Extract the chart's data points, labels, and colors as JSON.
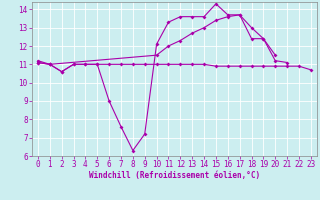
{
  "background_color": "#cceef0",
  "grid_color": "#ffffff",
  "line_color": "#aa00aa",
  "marker": "D",
  "marker_size": 2.0,
  "linewidth": 0.8,
  "xlabel": "Windchill (Refroidissement éolien,°C)",
  "xlabel_fontsize": 5.5,
  "tick_fontsize": 5.5,
  "xlim": [
    -0.5,
    23.5
  ],
  "ylim": [
    6,
    14.4
  ],
  "xticks": [
    0,
    1,
    2,
    3,
    4,
    5,
    6,
    7,
    8,
    9,
    10,
    11,
    12,
    13,
    14,
    15,
    16,
    17,
    18,
    19,
    20,
    21,
    22,
    23
  ],
  "yticks": [
    6,
    7,
    8,
    9,
    10,
    11,
    12,
    13,
    14
  ],
  "series1_x": [
    0,
    1,
    2,
    3,
    4,
    5,
    6,
    7,
    8,
    9,
    10,
    11,
    12,
    13,
    14,
    15,
    16,
    17,
    18,
    19,
    20,
    21,
    22,
    23
  ],
  "series1_y": [
    11.1,
    11.0,
    10.6,
    11.0,
    11.0,
    11.0,
    11.0,
    11.0,
    11.0,
    11.0,
    11.0,
    11.0,
    11.0,
    11.0,
    11.0,
    10.9,
    10.9,
    10.9,
    10.9,
    10.9,
    10.9,
    10.9,
    10.9,
    10.7
  ],
  "series2_x": [
    0,
    1,
    2,
    3,
    4,
    5,
    6,
    7,
    8,
    9,
    10,
    11,
    12,
    13,
    14,
    15,
    16,
    17,
    18,
    19,
    20,
    21
  ],
  "series2_y": [
    11.1,
    11.0,
    10.6,
    11.0,
    11.0,
    11.0,
    9.0,
    7.6,
    6.3,
    7.2,
    12.1,
    13.3,
    13.6,
    13.6,
    13.6,
    14.3,
    13.7,
    13.7,
    13.0,
    12.4,
    11.2,
    11.1
  ],
  "series3_x": [
    0,
    1,
    10,
    11,
    12,
    13,
    14,
    15,
    16,
    17,
    18,
    19,
    20
  ],
  "series3_y": [
    11.2,
    11.0,
    11.5,
    12.0,
    12.3,
    12.7,
    13.0,
    13.4,
    13.6,
    13.7,
    12.4,
    12.4,
    11.5
  ]
}
